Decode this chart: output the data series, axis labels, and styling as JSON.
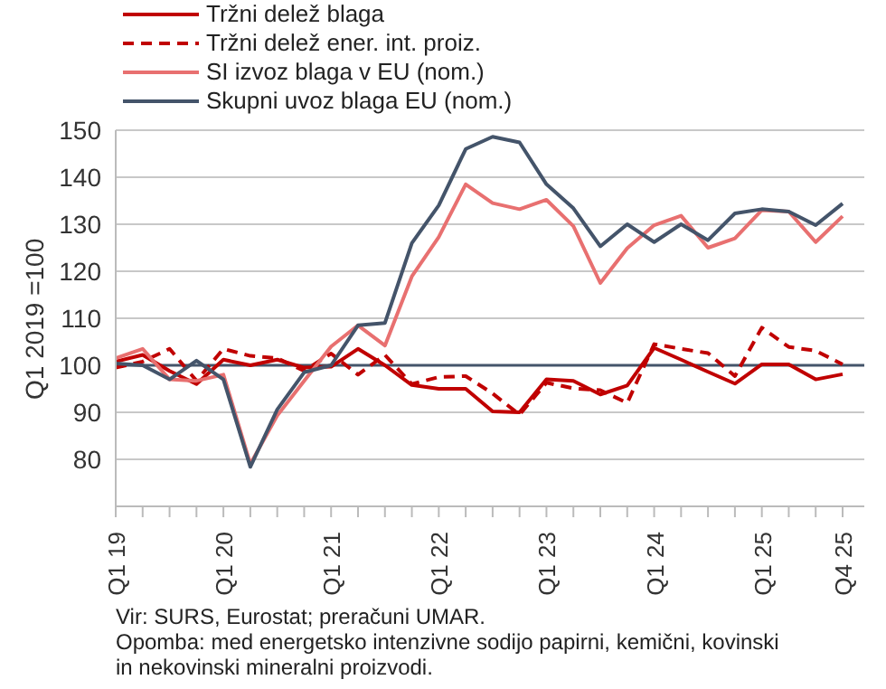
{
  "chart_data": {
    "type": "line",
    "ylabel": "Q1 2019 =100",
    "categories": [
      "Q1 19",
      null,
      null,
      null,
      "Q1 20",
      null,
      null,
      null,
      "Q1 21",
      null,
      null,
      null,
      "Q1 22",
      null,
      null,
      null,
      "Q1 23",
      null,
      null,
      null,
      "Q1 24",
      null,
      null,
      null,
      "Q1 25",
      null,
      null,
      "Q4 25"
    ],
    "series": [
      {
        "name": "Tržni delež blaga",
        "color": "#c00000",
        "line_style": "solid",
        "values": [
          100.8,
          102.2,
          98.8,
          96,
          101.2,
          100,
          101.2,
          99.5,
          99.7,
          103.5,
          100,
          95.8,
          95,
          95,
          90.2,
          90,
          97,
          96.7,
          93.8,
          95.7,
          103.7,
          101.2,
          98.6,
          96.1,
          100.2,
          100.2,
          97,
          98.1
        ]
      },
      {
        "name": "Tržni delež ener. int. proiz.",
        "color": "#c00000",
        "line_style": "dashed",
        "values": [
          99.5,
          100.8,
          103.5,
          96.7,
          103.5,
          102,
          101.5,
          98.8,
          102.5,
          98,
          102.2,
          96,
          97.5,
          97.7,
          94,
          89.5,
          96.3,
          95.1,
          94.7,
          92,
          104.5,
          103.5,
          102.6,
          97.7,
          108,
          103.9,
          103.1,
          100.2
        ]
      },
      {
        "name": "SI izvoz blaga v EU (nom.)",
        "color": "#e87070",
        "line_style": "solid",
        "values": [
          101.5,
          103.5,
          97,
          96.7,
          98,
          79,
          89.3,
          96.7,
          104,
          108.5,
          104.2,
          118.9,
          127.3,
          138.5,
          134.5,
          133.2,
          135.2,
          129.6,
          117.5,
          124.9,
          129.8,
          131.8,
          125,
          127,
          133,
          132.7,
          126.2,
          131.7
        ]
      },
      {
        "name": "Skupni uvoz blaga EU (nom.)",
        "color": "#44546a",
        "line_style": "solid",
        "values": [
          100.4,
          100,
          97,
          101,
          97,
          78.4,
          90.6,
          98.5,
          100,
          108.5,
          109,
          126,
          134,
          146,
          148.6,
          147.4,
          138.5,
          133.4,
          125.3,
          130,
          126.2,
          130,
          126.6,
          132.3,
          133.2,
          132.7,
          129.8,
          134.4
        ]
      }
    ],
    "ylim": [
      70,
      150
    ],
    "yticks": [
      {
        "value": 70,
        "label": null
      },
      80,
      90,
      100,
      110,
      120,
      130,
      140,
      150
    ],
    "grid": "y",
    "legend": "top",
    "marker": "none",
    "ref_lines": [
      {
        "axis": "y",
        "value": 100,
        "color": "#44546a",
        "line_style": "solid"
      }
    ],
    "annotations": [
      "Vir: SURS, Eurostat; preračuni UMAR.",
      "Opomba: med energetsko intenzivne sodijo papirni, kemični, kovinski in nekovinski mineralni proizvodi."
    ]
  }
}
